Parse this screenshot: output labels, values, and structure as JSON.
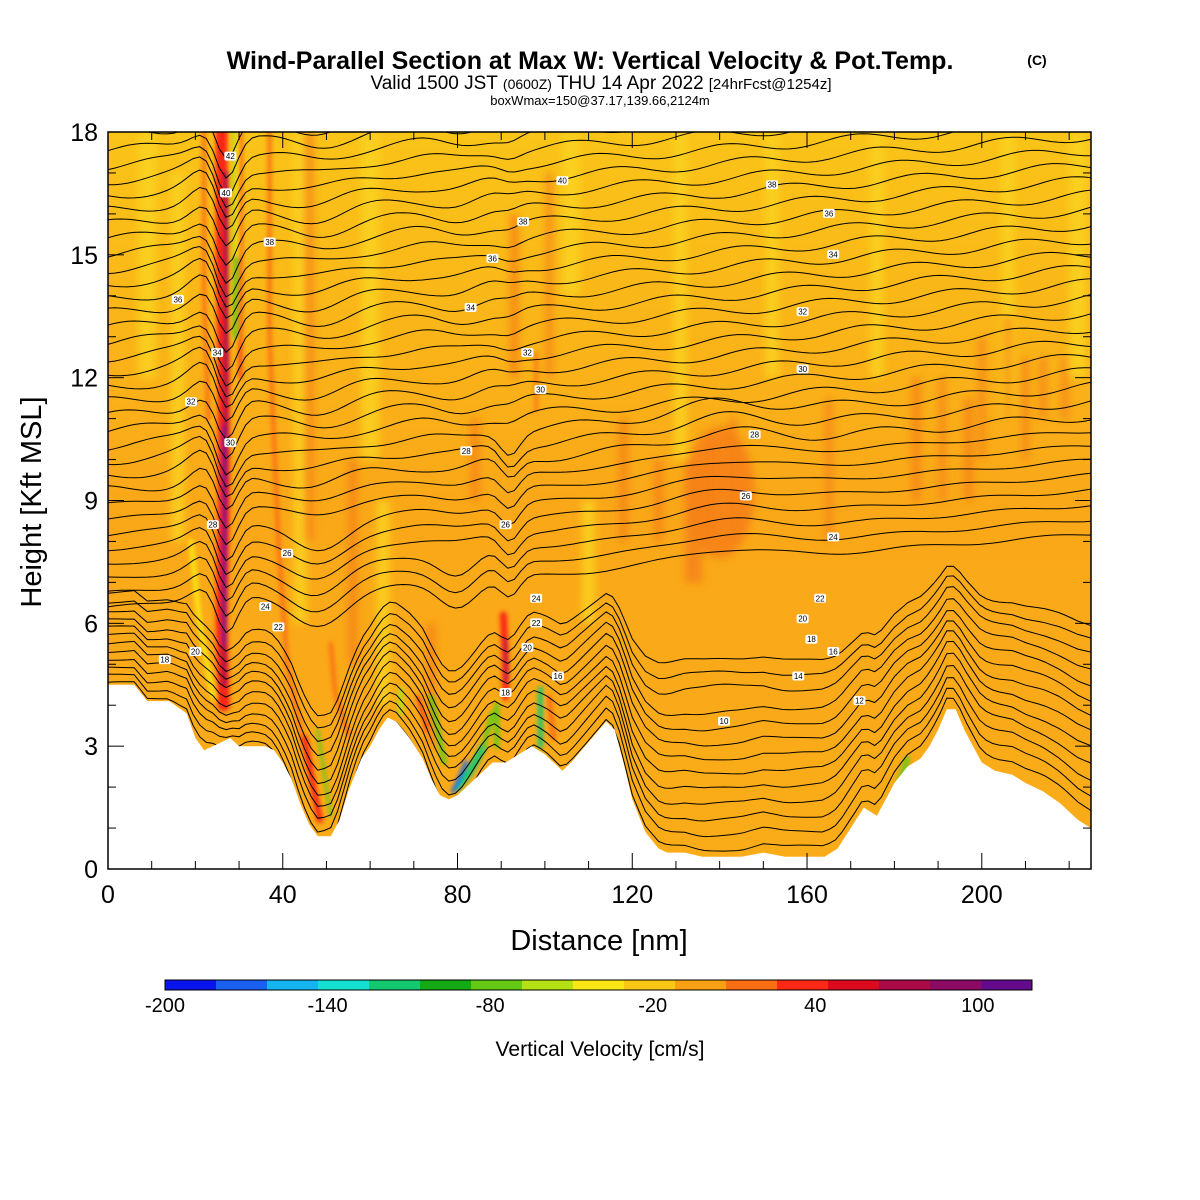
{
  "title": "Wind-Parallel Section at Max W: Vertical Velocity & Pot.Temp.",
  "title_mark": "(C)",
  "subtitle": {
    "valid": "Valid 1500 JST",
    "utc": "(0600Z)",
    "date": "THU 14 Apr 2022",
    "fcst": "[24hrFcst@1254z]"
  },
  "box_info": "boxWmax=150@37.17,139.66,2124m",
  "chart_data": {
    "type": "heatmap",
    "xlabel": "Distance [nm]",
    "ylabel": "Height [Kft MSL]",
    "xlim": [
      0,
      225
    ],
    "ylim": [
      0,
      18
    ],
    "x_ticks": [
      0,
      40,
      80,
      120,
      160,
      200
    ],
    "y_ticks": [
      0,
      3,
      6,
      9,
      12,
      15,
      18
    ],
    "colorbar": {
      "label": "Vertical Velocity [cm/s]",
      "range": [
        -200,
        120
      ],
      "tick_values": [
        -200,
        -140,
        -80,
        -20,
        40,
        100
      ],
      "colors": [
        "#0a14ee",
        "#1a60f0",
        "#14b4f0",
        "#14e0d2",
        "#14c870",
        "#14aa14",
        "#64c814",
        "#b4e014",
        "#fae614",
        "#fac814",
        "#faa014",
        "#fa6e14",
        "#fa2814",
        "#dc0a1e",
        "#aa0a46",
        "#8c0a64",
        "#640a8c"
      ]
    },
    "terrain": [
      [
        0,
        4.5
      ],
      [
        3,
        4.5
      ],
      [
        6,
        4.5
      ],
      [
        9,
        4.1
      ],
      [
        14,
        4.1
      ],
      [
        18,
        3.8
      ],
      [
        20,
        3.2
      ],
      [
        22,
        2.9
      ],
      [
        24,
        3.0
      ],
      [
        26,
        3.1
      ],
      [
        28,
        3.2
      ],
      [
        30,
        3.0
      ],
      [
        33,
        3.0
      ],
      [
        36,
        3.0
      ],
      [
        38,
        2.9
      ],
      [
        40,
        2.6
      ],
      [
        42,
        2.2
      ],
      [
        44,
        1.6
      ],
      [
        46,
        1.1
      ],
      [
        48,
        0.8
      ],
      [
        51,
        0.8
      ],
      [
        53,
        1.2
      ],
      [
        55,
        1.9
      ],
      [
        58,
        2.7
      ],
      [
        60,
        3.0
      ],
      [
        62,
        3.4
      ],
      [
        64,
        3.7
      ],
      [
        66,
        3.6
      ],
      [
        69,
        3.2
      ],
      [
        72,
        2.7
      ],
      [
        74,
        2.2
      ],
      [
        76,
        1.8
      ],
      [
        78,
        1.7
      ],
      [
        80,
        1.8
      ],
      [
        83,
        2.1
      ],
      [
        86,
        2.4
      ],
      [
        88,
        2.6
      ],
      [
        91,
        2.6
      ],
      [
        94,
        2.8
      ],
      [
        97,
        3.0
      ],
      [
        100,
        2.8
      ],
      [
        102,
        2.6
      ],
      [
        104,
        2.4
      ],
      [
        106,
        2.6
      ],
      [
        110,
        3.1
      ],
      [
        114,
        3.6
      ],
      [
        116,
        3.4
      ],
      [
        118,
        2.6
      ],
      [
        120,
        1.7
      ],
      [
        123,
        0.9
      ],
      [
        126,
        0.5
      ],
      [
        128,
        0.4
      ],
      [
        132,
        0.4
      ],
      [
        136,
        0.3
      ],
      [
        140,
        0.3
      ],
      [
        145,
        0.3
      ],
      [
        150,
        0.4
      ],
      [
        155,
        0.3
      ],
      [
        160,
        0.3
      ],
      [
        164,
        0.3
      ],
      [
        167,
        0.5
      ],
      [
        170,
        1.0
      ],
      [
        173,
        1.5
      ],
      [
        176,
        1.3
      ],
      [
        178,
        1.7
      ],
      [
        180,
        2.1
      ],
      [
        183,
        2.5
      ],
      [
        186,
        2.7
      ],
      [
        188,
        3.0
      ],
      [
        190,
        3.4
      ],
      [
        192,
        3.9
      ],
      [
        194,
        3.9
      ],
      [
        196,
        3.4
      ],
      [
        198,
        3.0
      ],
      [
        200,
        2.6
      ],
      [
        203,
        2.4
      ],
      [
        207,
        2.3
      ],
      [
        210,
        2.1
      ],
      [
        214,
        1.9
      ],
      [
        218,
        1.6
      ],
      [
        222,
        1.2
      ],
      [
        225,
        1.0
      ]
    ],
    "theta_labels": [
      {
        "x": 28,
        "y": 17.4,
        "v": "42"
      },
      {
        "x": 27,
        "y": 16.5,
        "v": "40"
      },
      {
        "x": 37,
        "y": 15.3,
        "v": "38"
      },
      {
        "x": 16,
        "y": 13.9,
        "v": "36"
      },
      {
        "x": 25,
        "y": 12.6,
        "v": "34"
      },
      {
        "x": 19,
        "y": 11.4,
        "v": "32"
      },
      {
        "x": 28,
        "y": 10.4,
        "v": "30"
      },
      {
        "x": 24,
        "y": 8.4,
        "v": "28"
      },
      {
        "x": 41,
        "y": 7.7,
        "v": "26"
      },
      {
        "x": 36,
        "y": 6.4,
        "v": "24"
      },
      {
        "x": 39,
        "y": 5.9,
        "v": "22"
      },
      {
        "x": 20,
        "y": 5.3,
        "v": "20"
      },
      {
        "x": 13,
        "y": 5.1,
        "v": "18"
      },
      {
        "x": 104,
        "y": 16.8,
        "v": "40"
      },
      {
        "x": 95,
        "y": 15.8,
        "v": "38"
      },
      {
        "x": 88,
        "y": 14.9,
        "v": "36"
      },
      {
        "x": 83,
        "y": 13.7,
        "v": "34"
      },
      {
        "x": 96,
        "y": 12.6,
        "v": "32"
      },
      {
        "x": 99,
        "y": 11.7,
        "v": "30"
      },
      {
        "x": 82,
        "y": 10.2,
        "v": "28"
      },
      {
        "x": 91,
        "y": 8.4,
        "v": "26"
      },
      {
        "x": 98,
        "y": 6.6,
        "v": "24"
      },
      {
        "x": 98,
        "y": 6.0,
        "v": "22"
      },
      {
        "x": 96,
        "y": 5.4,
        "v": "20"
      },
      {
        "x": 91,
        "y": 4.3,
        "v": "18"
      },
      {
        "x": 103,
        "y": 4.7,
        "v": "16"
      },
      {
        "x": 152,
        "y": 16.7,
        "v": "38"
      },
      {
        "x": 165,
        "y": 16.0,
        "v": "36"
      },
      {
        "x": 166,
        "y": 15.0,
        "v": "34"
      },
      {
        "x": 159,
        "y": 13.6,
        "v": "32"
      },
      {
        "x": 159,
        "y": 12.2,
        "v": "30"
      },
      {
        "x": 148,
        "y": 10.6,
        "v": "28"
      },
      {
        "x": 146,
        "y": 9.1,
        "v": "26"
      },
      {
        "x": 166,
        "y": 8.1,
        "v": "24"
      },
      {
        "x": 163,
        "y": 6.6,
        "v": "22"
      },
      {
        "x": 159,
        "y": 6.1,
        "v": "20"
      },
      {
        "x": 161,
        "y": 5.6,
        "v": "18"
      },
      {
        "x": 166,
        "y": 5.3,
        "v": "16"
      },
      {
        "x": 158,
        "y": 4.7,
        "v": "14"
      },
      {
        "x": 172,
        "y": 4.1,
        "v": "12"
      },
      {
        "x": 141,
        "y": 3.6,
        "v": "10"
      }
    ]
  }
}
